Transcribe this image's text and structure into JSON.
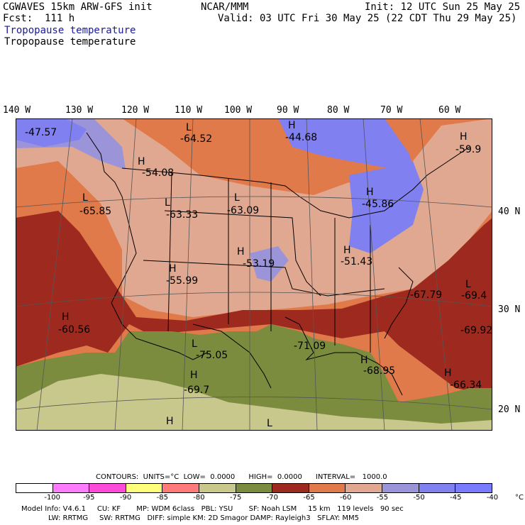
{
  "header": {
    "title": "CGWAVES 15km ARW-GFS init",
    "forecast": "Fcst:  111 h",
    "subtitle1": "Tropopause temperature",
    "subtitle2": "Tropopause temperature",
    "center": "NCAR/MMM",
    "init": "Init: 12 UTC Sun 25 May 25",
    "valid": "Valid: 03 UTC Fri 30 May 25 (22 CDT Thu 29 May 25)"
  },
  "longitudes": [
    "140 W",
    "130 W",
    "120 W",
    "110 W",
    "100 W",
    "90 W",
    "80 W",
    "70 W",
    "60 W"
  ],
  "latitudes": [
    "40 N",
    "30 N",
    "20 N"
  ],
  "labels": [
    {
      "t": "-47.57"
    },
    {
      "t": "L"
    },
    {
      "t": "-64.52"
    },
    {
      "t": "H"
    },
    {
      "t": "-44.68"
    },
    {
      "t": "H"
    },
    {
      "t": "-59.9"
    },
    {
      "t": "H"
    },
    {
      "t": "-54.08"
    },
    {
      "t": "L"
    },
    {
      "t": "-65.85"
    },
    {
      "t": "L"
    },
    {
      "t": "-63.33"
    },
    {
      "t": "L"
    },
    {
      "t": "-63.09"
    },
    {
      "t": "H"
    },
    {
      "t": "-45.86"
    },
    {
      "t": "H"
    },
    {
      "t": "-53.19"
    },
    {
      "t": "H"
    },
    {
      "t": "-51.43"
    },
    {
      "t": "H"
    },
    {
      "t": "-55.99"
    },
    {
      "t": "-67.79"
    },
    {
      "t": "L"
    },
    {
      "t": "-69.4"
    },
    {
      "t": "H"
    },
    {
      "t": "-60.56"
    },
    {
      "t": "-69.92"
    },
    {
      "t": "L"
    },
    {
      "t": "-75.05"
    },
    {
      "t": "-71.09"
    },
    {
      "t": "H"
    },
    {
      "t": "-69.7"
    },
    {
      "t": "H"
    },
    {
      "t": "-66.34"
    },
    {
      "t": "H"
    },
    {
      "t": "-68.95"
    },
    {
      "t": "H"
    },
    {
      "t": "L"
    }
  ],
  "legend": {
    "info": "CONTOURS:  UNITS=°C  LOW=  0.0000      HIGH=  0.0000      INTERVAL=   1000.0",
    "colors": [
      "#ffffff",
      "#ff7bff",
      "#ff4ad9",
      "#ffff7b",
      "#ff7b7b",
      "#c8c88c",
      "#7b8c3e",
      "#9e2a1f",
      "#e07a4a",
      "#e0a890",
      "#9c94d9",
      "#8080f0",
      "#7b7bff"
    ],
    "ticks": [
      "-100",
      "-95",
      "-90",
      "-85",
      "-80",
      "-75",
      "-70",
      "-65",
      "-60",
      "-55",
      "-50",
      "-45",
      "-40",
      "°C"
    ]
  },
  "footer": {
    "line1": "Model Info: V4.6.1     CU: KF       MP: WDM 6class   PBL: YSU       SF: Noah LSM     15 km   119 levels   90 sec",
    "line2": "LW: RRTMG     SW: RRTMG   DIFF: simple KM: 2D Smagor DAMP: Rayleigh3   SFLAY: MM5"
  }
}
